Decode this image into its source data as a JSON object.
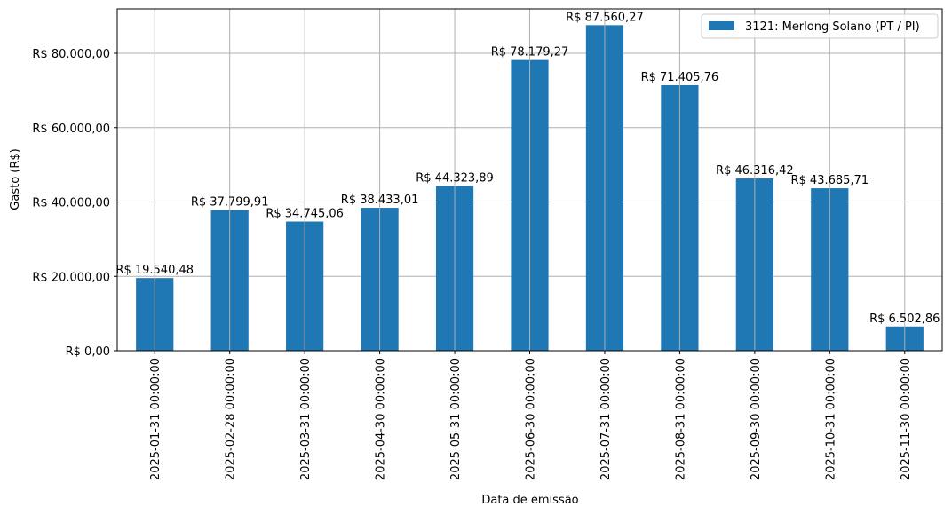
{
  "chart_data": {
    "type": "bar",
    "title": "",
    "xlabel": "Data de emissão",
    "ylabel": "Gasto (R$)",
    "ylim": [
      0,
      92000
    ],
    "grid": true,
    "legend_position": "upper right",
    "bar_color": "#1f77b4",
    "categories": [
      "2025-01-31 00:00:00",
      "2025-02-28 00:00:00",
      "2025-03-31 00:00:00",
      "2025-04-30 00:00:00",
      "2025-05-31 00:00:00",
      "2025-06-30 00:00:00",
      "2025-07-31 00:00:00",
      "2025-08-31 00:00:00",
      "2025-09-30 00:00:00",
      "2025-10-31 00:00:00",
      "2025-11-30 00:00:00"
    ],
    "series": [
      {
        "name": "3121: Merlong Solano (PT / PI)",
        "values": [
          19540.48,
          37799.91,
          34745.06,
          38433.01,
          44323.89,
          78179.27,
          87560.27,
          71405.76,
          46316.42,
          43685.71,
          6502.86
        ],
        "labels": [
          "R$ 19.540,48",
          "R$ 37.799,91",
          "R$ 34.745,06",
          "R$ 38.433,01",
          "R$ 44.323,89",
          "R$ 78.179,27",
          "R$ 87.560,27",
          "R$ 71.405,76",
          "R$ 46.316,42",
          "R$ 43.685,71",
          "R$ 6.502,86"
        ]
      }
    ],
    "yticks": [
      {
        "value": 0,
        "label": "R$ 0,00"
      },
      {
        "value": 20000,
        "label": "R$ 20.000,00"
      },
      {
        "value": 40000,
        "label": "R$ 40.000,00"
      },
      {
        "value": 60000,
        "label": "R$ 60.000,00"
      },
      {
        "value": 80000,
        "label": "R$ 80.000,00"
      }
    ]
  }
}
